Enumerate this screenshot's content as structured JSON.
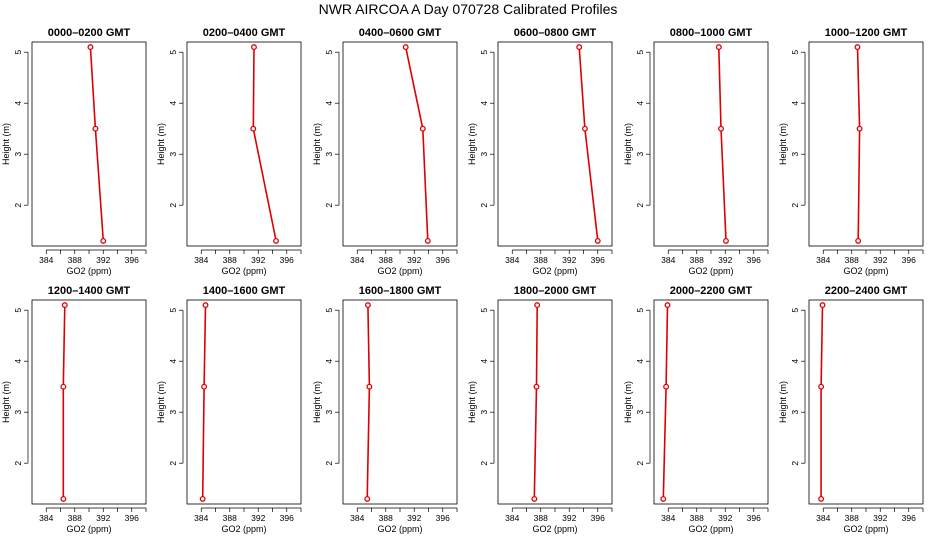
{
  "title": "NWR AIRCOA A  Day 070728  Calibrated Profiles",
  "colors": {
    "profile": "#dd0000",
    "axis": "#000000",
    "background": "#ffffff"
  },
  "chart_data": {
    "type": "line",
    "xlabel": "GO2 (ppm)",
    "ylabel": "Height (m)",
    "xlim": [
      382,
      398
    ],
    "ylim": [
      1.2,
      5.2
    ],
    "xticks": [
      384,
      388,
      392,
      396
    ],
    "xminor": [
      386,
      390,
      394,
      398
    ],
    "yticks": [
      2,
      3,
      4,
      5
    ],
    "grid": false,
    "heights": [
      5.1,
      3.5,
      1.3
    ],
    "panels": [
      {
        "title": "0000–0200 GMT",
        "co2": [
          390.2,
          390.9,
          392.0
        ]
      },
      {
        "title": "0200–0400 GMT",
        "co2": [
          391.4,
          391.3,
          394.5
        ]
      },
      {
        "title": "0400–0600 GMT",
        "co2": [
          390.8,
          393.2,
          393.9
        ]
      },
      {
        "title": "0600–0800 GMT",
        "co2": [
          393.4,
          394.2,
          396.0
        ]
      },
      {
        "title": "0800–1000 GMT",
        "co2": [
          391.1,
          391.4,
          392.1
        ]
      },
      {
        "title": "1000–1200 GMT",
        "co2": [
          388.8,
          389.1,
          388.9
        ]
      },
      {
        "title": "1200–1400 GMT",
        "co2": [
          386.6,
          386.4,
          386.4
        ]
      },
      {
        "title": "1400–1600 GMT",
        "co2": [
          384.6,
          384.4,
          384.2
        ]
      },
      {
        "title": "1600–1800 GMT",
        "co2": [
          385.5,
          385.7,
          385.4
        ]
      },
      {
        "title": "1800–2000 GMT",
        "co2": [
          387.5,
          387.4,
          387.1
        ]
      },
      {
        "title": "2000–2200 GMT",
        "co2": [
          383.9,
          383.7,
          383.3
        ]
      },
      {
        "title": "2200–2400 GMT",
        "co2": [
          383.9,
          383.7,
          383.7
        ]
      }
    ]
  }
}
